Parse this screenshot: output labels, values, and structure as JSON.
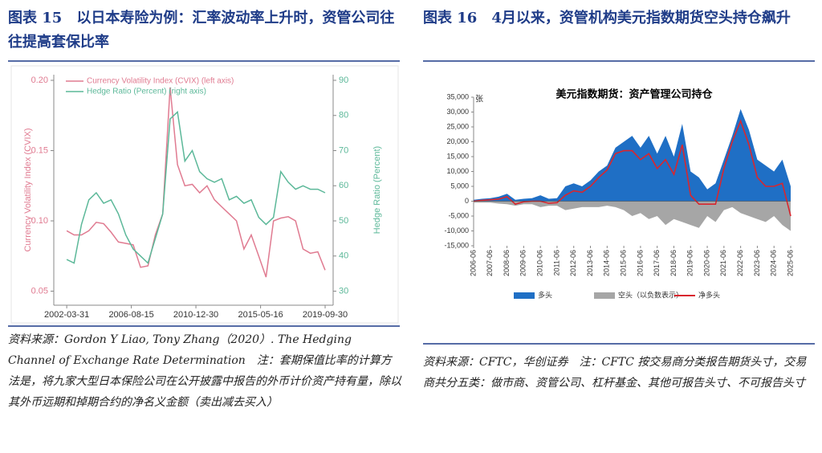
{
  "left": {
    "heading": "图表 15　以日本寿险为例：汇率波动率上升时，资管公司往往提高套保比率",
    "source": "资料来源：Gordon Y Liao, Tony Zhang（2020）. The Hedging Channel of Exchange Rate Determination",
    "note": "注：套期保值比率的计算方法是，将九家大型日本保险公司在公开披露中报告的外币计价资产持有量，除以其外币远期和掉期合约的净名义金额（卖出减去买入）"
  },
  "right": {
    "heading": "图表 16　4月以来，资管机构美元指数期货空头持仓飙升",
    "source": "资料来源：CFTC，华创证券",
    "note": "注：CFTC 按交易商分类报告期货头寸，交易商共分五类：做市商、资管公司、杠杆基金、其他可报告头寸、不可报告头寸"
  },
  "chart_data": [
    {
      "type": "line",
      "y_label": "Currency Volatility Index (CVIX)",
      "y2_label": "Hedge Ratio (Percent)",
      "x": [
        "2002-03-31",
        "2002-09-30",
        "2003-03-31",
        "2003-09-30",
        "2004-03-31",
        "2004-09-30",
        "2005-03-31",
        "2005-09-30",
        "2006-03-31",
        "2006-09-30",
        "2007-03-31",
        "2007-09-30",
        "2008-03-31",
        "2008-09-30",
        "2009-03-31",
        "2009-09-30",
        "2010-03-31",
        "2010-09-30",
        "2011-03-31",
        "2011-09-30",
        "2012-03-31",
        "2012-09-30",
        "2013-03-31",
        "2013-09-30",
        "2014-03-31",
        "2014-09-30",
        "2015-03-31",
        "2015-09-30",
        "2016-03-31",
        "2016-09-30",
        "2017-03-31",
        "2017-09-30",
        "2018-03-31",
        "2018-09-30",
        "2019-03-31",
        "2019-09-30"
      ],
      "xlim": [
        "2001-05-15",
        "2020-04-15"
      ],
      "xticks": [
        "2002-03-31",
        "2006-08-15",
        "2010-12-30",
        "2015-05-16",
        "2019-09-30"
      ],
      "ylim": [
        0.04,
        0.204
      ],
      "yticks": [
        {
          "value": 0.05,
          "label": "0.05"
        },
        {
          "value": 0.1,
          "label": "0.10"
        },
        0.15,
        {
          "value": 0.2,
          "label": "0.20"
        }
      ],
      "y2lim": [
        26,
        91.6
      ],
      "y2ticks": [
        30,
        40,
        50,
        60,
        70,
        80,
        90
      ],
      "legend": "upper left",
      "series": [
        {
          "name": "Currency Volatility Index (CVIX) (left axis)",
          "color": "#e07b91",
          "values": [
            0.093,
            0.09,
            0.09,
            0.093,
            0.099,
            0.098,
            0.092,
            0.085,
            0.084,
            0.083,
            0.067,
            0.068,
            0.09,
            0.105,
            0.195,
            0.14,
            0.125,
            0.126,
            0.12,
            0.125,
            0.115,
            0.11,
            0.105,
            0.1,
            0.08,
            0.09,
            0.075,
            0.06,
            0.1,
            0.102,
            0.103,
            0.1,
            0.08,
            0.077,
            0.078,
            0.065
          ]
        },
        {
          "name": "Hedge Ratio (Percent) (right axis)",
          "color": "#5cb899",
          "axis": "y2",
          "values": [
            39,
            38,
            49,
            56,
            58,
            55,
            56,
            52,
            46,
            42,
            40,
            38,
            45,
            52,
            79,
            81,
            67,
            70,
            64,
            62,
            61,
            62,
            56,
            57,
            55,
            56,
            51,
            49,
            51,
            64,
            61,
            59,
            60,
            59,
            59,
            58
          ]
        }
      ]
    },
    {
      "type": "area",
      "title": "美元指数期货：资产管理公司持仓",
      "unit": "张",
      "x": [
        "2006-06",
        "2006-12",
        "2007-06",
        "2007-12",
        "2008-06",
        "2008-12",
        "2009-06",
        "2009-12",
        "2010-06",
        "2010-12",
        "2011-06",
        "2011-12",
        "2012-06",
        "2012-12",
        "2013-06",
        "2013-12",
        "2014-06",
        "2014-12",
        "2015-06",
        "2015-12",
        "2016-06",
        "2016-12",
        "2017-06",
        "2017-12",
        "2018-06",
        "2018-12",
        "2019-06",
        "2019-12",
        "2020-06",
        "2020-12",
        "2021-06",
        "2021-12",
        "2022-06",
        "2022-12",
        "2023-06",
        "2023-12",
        "2024-06",
        "2024-12",
        "2025-06"
      ],
      "xlim": [
        "2006-06",
        "2025-06"
      ],
      "xticks": [
        "2006-06",
        "2007-06",
        "2008-06",
        "2009-06",
        "2010-06",
        "2011-06",
        "2012-06",
        "2013-06",
        "2014-06",
        "2015-06",
        "2016-06",
        "2017-06",
        "2018-06",
        "2019-06",
        "2020-06",
        "2021-06",
        "2022-06",
        "2023-06",
        "2024-06",
        "2025-06"
      ],
      "ylim": [
        -15000,
        35000
      ],
      "yticks": [
        {
          "value": -15000,
          "label": "-15,000"
        },
        {
          "value": -10000,
          "label": "-10,000"
        },
        {
          "value": -5000,
          "label": "-5,000"
        },
        0,
        {
          "value": 5000,
          "label": "5,000"
        },
        {
          "value": 10000,
          "label": "10,000"
        },
        {
          "value": 15000,
          "label": "15,000"
        },
        {
          "value": 20000,
          "label": "20,000"
        },
        {
          "value": 25000,
          "label": "25,000"
        },
        {
          "value": 30000,
          "label": "30,000"
        },
        {
          "value": 35000,
          "label": "35,000"
        }
      ],
      "legend": "bottom",
      "series": [
        {
          "name": "多头",
          "color": "#1f6fc5",
          "style": "area",
          "values": [
            500,
            800,
            1000,
            1500,
            2500,
            500,
            800,
            1000,
            2000,
            800,
            1000,
            5000,
            6000,
            5000,
            7000,
            10000,
            12000,
            18000,
            20000,
            22000,
            18000,
            22000,
            16000,
            22000,
            15000,
            26000,
            10000,
            8000,
            4000,
            6000,
            14000,
            22000,
            31000,
            24000,
            14000,
            12000,
            10000,
            14000,
            5000
          ]
        },
        {
          "name": "空头（以负数表示）",
          "color": "#a6a6a6",
          "style": "area",
          "values": [
            -500,
            -500,
            -500,
            -800,
            -1000,
            -1500,
            -1000,
            -1000,
            -2000,
            -1500,
            -1500,
            -3000,
            -2500,
            -2000,
            -2000,
            -2000,
            -1500,
            -2000,
            -3000,
            -5000,
            -4000,
            -6000,
            -5000,
            -8000,
            -6000,
            -7000,
            -8000,
            -9000,
            -5000,
            -7000,
            -3000,
            -2000,
            -4000,
            -5000,
            -6000,
            -7000,
            -5000,
            -8000,
            -10000
          ]
        },
        {
          "name": "净多头",
          "color": "#d9262e",
          "style": "line",
          "values": [
            0,
            300,
            500,
            700,
            1500,
            -1000,
            -200,
            0,
            0,
            -700,
            -500,
            2000,
            3500,
            3000,
            5000,
            8000,
            10500,
            16000,
            17000,
            17000,
            14000,
            16000,
            11000,
            14000,
            9000,
            19000,
            2000,
            -1000,
            -1000,
            -1000,
            11000,
            20000,
            27000,
            19000,
            8000,
            5000,
            5000,
            6000,
            -5000
          ]
        }
      ]
    }
  ]
}
